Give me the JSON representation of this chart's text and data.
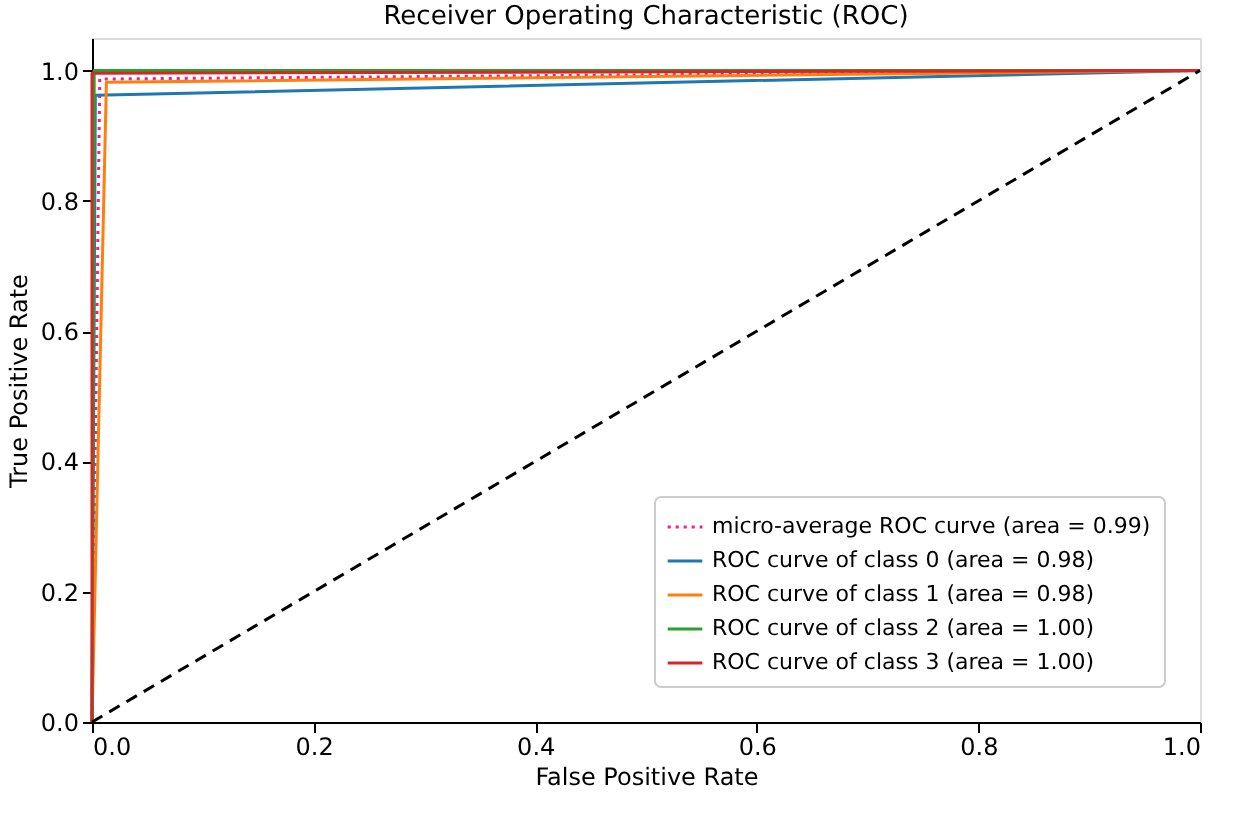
{
  "chart_data": {
    "type": "line",
    "title": "Receiver Operating Characteristic (ROC)",
    "xlabel": "False Positive Rate",
    "ylabel": "True Positive Rate",
    "series": [
      {
        "name": "micro-average ROC curve (area = 0.99)",
        "color": "#ff1493",
        "line_style": "dotted",
        "x": [
          0,
          0.007,
          1
        ],
        "values": [
          0,
          0.987,
          1
        ]
      },
      {
        "name": "ROC curve of class 0 (area = 0.98)",
        "color": "#1f77b4",
        "x": [
          0,
          0.003,
          1
        ],
        "values": [
          0,
          0.962,
          1
        ]
      },
      {
        "name": "ROC curve of class 1 (area = 0.98)",
        "color": "#ff7f0e",
        "x": [
          0,
          0.013,
          1
        ],
        "values": [
          0,
          0.982,
          1
        ]
      },
      {
        "name": "ROC curve of class 2 (area = 1.00)",
        "color": "#2ca02c",
        "x": [
          0,
          0.002,
          1
        ],
        "values": [
          0,
          1,
          1
        ]
      },
      {
        "name": "ROC curve of class 3 (area = 1.00)",
        "color": "#d62728",
        "x": [
          0,
          0,
          1
        ],
        "values": [
          0,
          0.996,
          1
        ]
      },
      {
        "color": "#000000",
        "line_style": "dashed",
        "x": [
          0,
          1
        ],
        "values": [
          0,
          1
        ]
      }
    ],
    "xlim": [
      0,
      1
    ],
    "ylim": [
      0,
      1.05
    ],
    "xticks": [
      {
        "value": 0,
        "label": "0.0"
      },
      0.2,
      0.4,
      0.6,
      0.8,
      {
        "value": 1,
        "label": "1.0"
      }
    ],
    "yticks": [
      {
        "value": 0,
        "label": "0.0"
      },
      0.2,
      0.4,
      0.6,
      0.8,
      {
        "value": 1,
        "label": "1.0"
      }
    ],
    "grid": false,
    "legend": "bottom right",
    "marker": "none"
  }
}
